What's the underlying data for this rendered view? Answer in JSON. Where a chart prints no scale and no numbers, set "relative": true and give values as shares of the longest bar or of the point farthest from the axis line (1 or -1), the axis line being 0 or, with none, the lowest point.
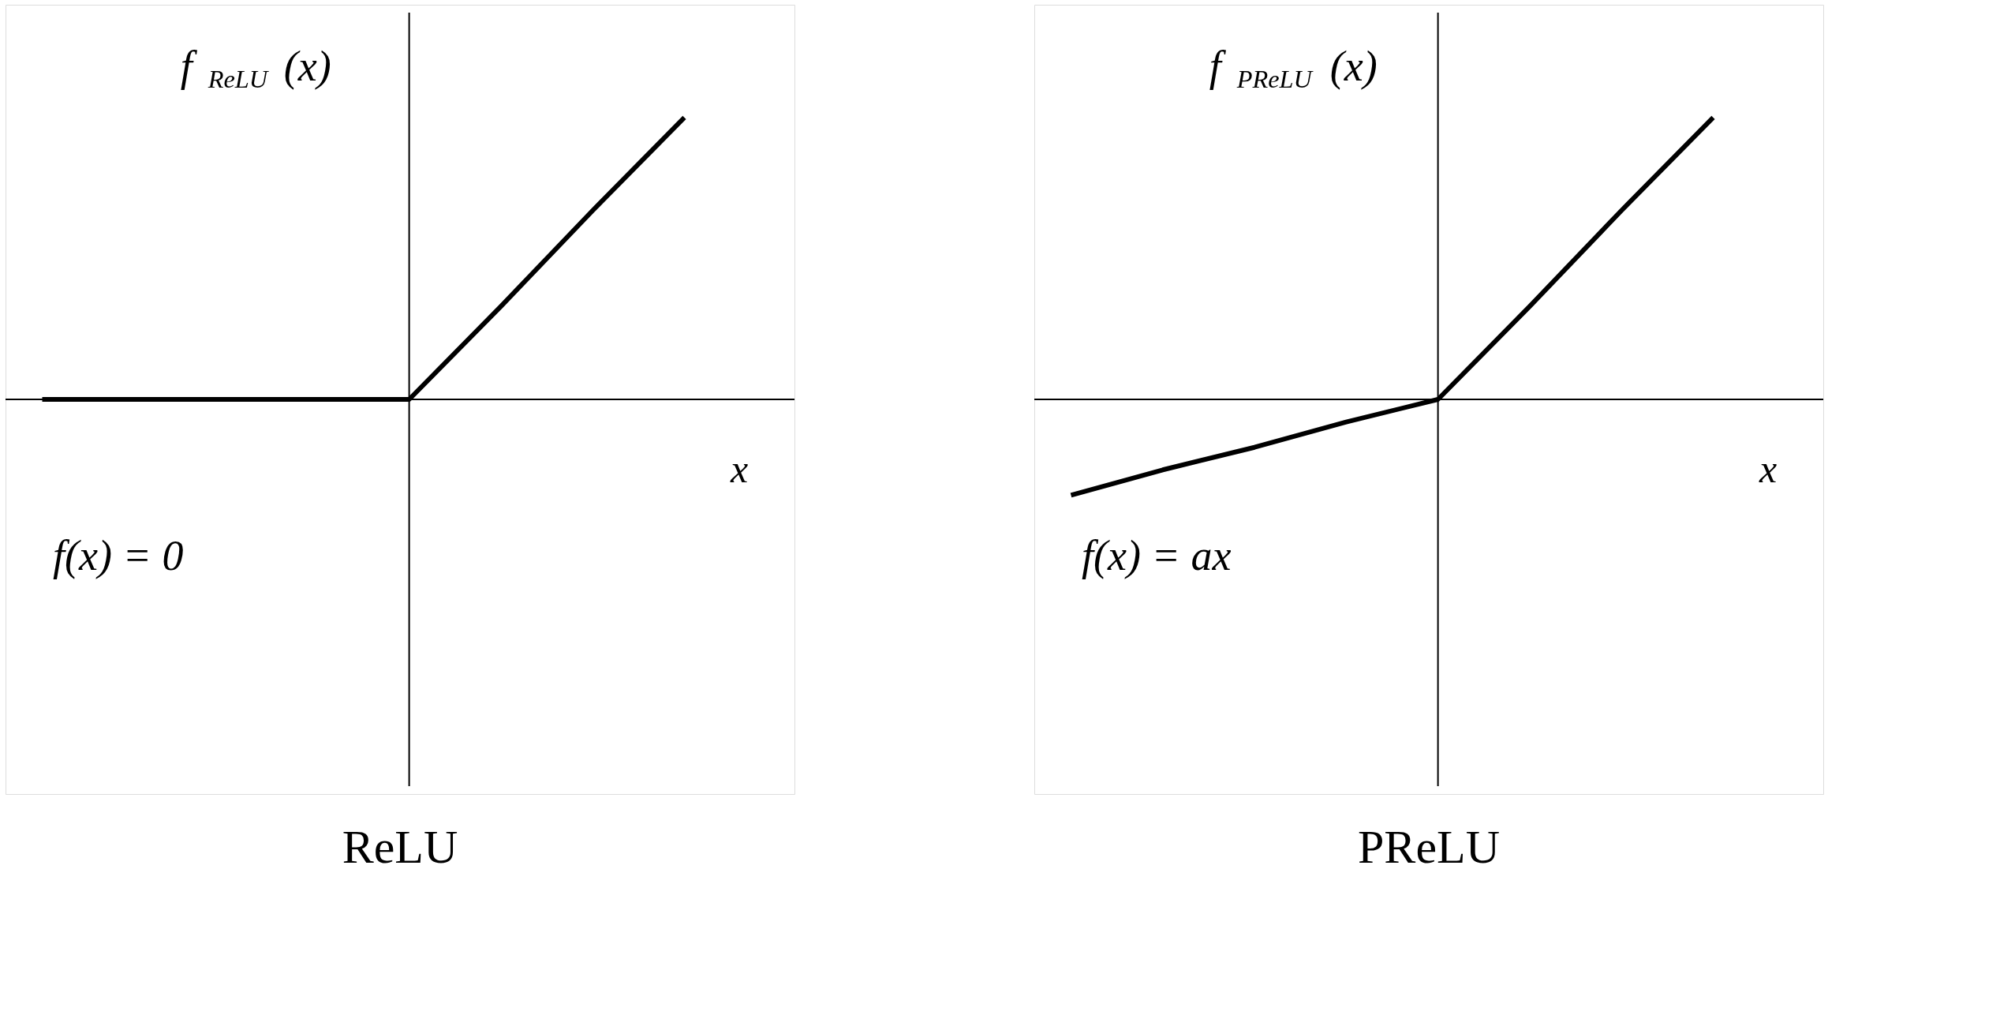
{
  "chart_data": [
    {
      "type": "line",
      "title": "ReLU",
      "xlabel": "x",
      "ylabel": "f$_{ReLU}$(x)",
      "relative": true,
      "tick_labels": false,
      "marker": "none",
      "categories": [
        null,
        null,
        null,
        null,
        null,
        null,
        null,
        null
      ],
      "series": [
        {
          "color": "#000000",
          "values": [
            0,
            0,
            0,
            0,
            0,
            0.33,
            0.67,
            1
          ]
        }
      ],
      "annotations": [
        "f(x) = 0"
      ]
    },
    {
      "type": "line",
      "title": "PReLU",
      "xlabel": "x",
      "ylabel": "f$_{PReLU}$(x)",
      "relative": true,
      "tick_labels": false,
      "marker": "none",
      "categories": [
        null,
        null,
        null,
        null,
        null,
        null,
        null,
        null
      ],
      "series": [
        {
          "color": "#000000",
          "values": [
            -0.34,
            -0.25,
            -0.17,
            -0.08,
            0,
            0.33,
            0.67,
            1
          ]
        }
      ],
      "annotations": [
        "f(x) = ax"
      ]
    }
  ]
}
